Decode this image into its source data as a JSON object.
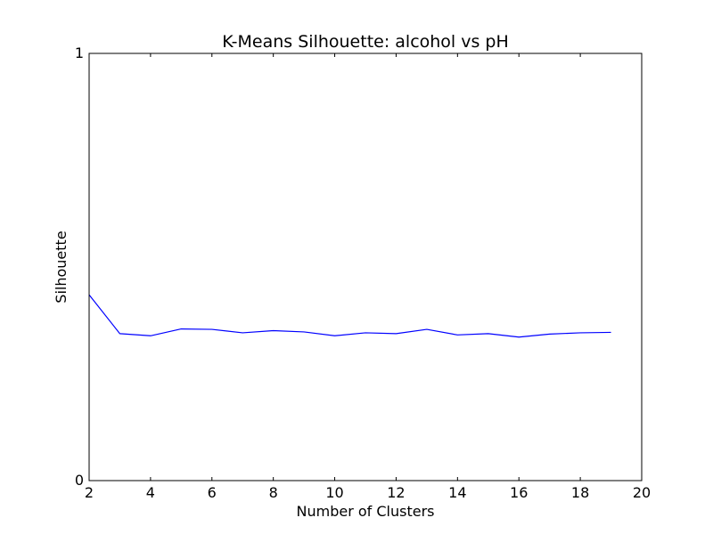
{
  "chart_data": {
    "type": "line",
    "title": "K-Means Silhouette: alcohol vs pH",
    "xlabel": "Number of Clusters",
    "ylabel": "Silhouette",
    "xlim": [
      2,
      20
    ],
    "ylim": [
      0,
      1
    ],
    "x_ticks": [
      "2",
      "4",
      "6",
      "8",
      "10",
      "12",
      "14",
      "16",
      "18",
      "20"
    ],
    "y_ticks": [
      "0",
      "1"
    ],
    "grid": false,
    "series": [
      {
        "name": "silhouette",
        "color": "#0000ff",
        "x": [
          2,
          3,
          4,
          5,
          6,
          7,
          8,
          9,
          10,
          11,
          12,
          13,
          14,
          15,
          16,
          17,
          18,
          19
        ],
        "values": [
          0.435,
          0.344,
          0.339,
          0.355,
          0.354,
          0.346,
          0.351,
          0.348,
          0.339,
          0.346,
          0.344,
          0.354,
          0.341,
          0.344,
          0.336,
          0.343,
          0.346,
          0.347
        ]
      }
    ]
  }
}
